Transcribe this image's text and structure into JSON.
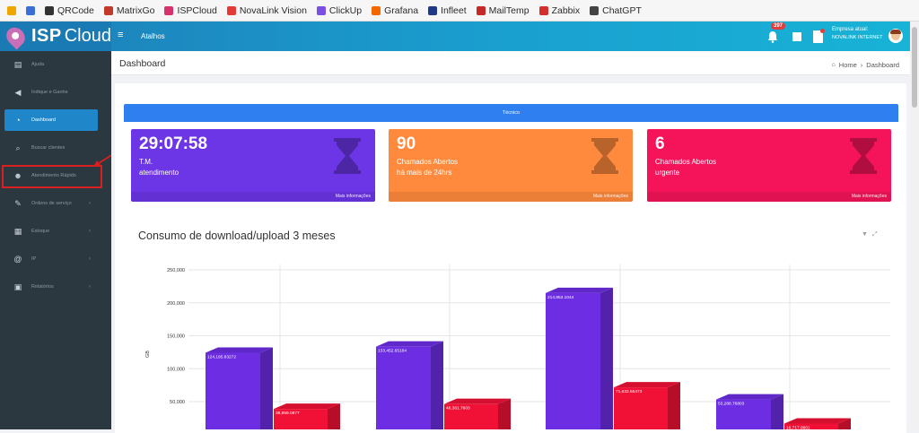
{
  "bookmarks": [
    {
      "label": "",
      "color": "#f0a500"
    },
    {
      "label": "",
      "color": "#3b6fd6"
    },
    {
      "label": "QRCode",
      "color": "#333333"
    },
    {
      "label": "MatrixGo",
      "color": "#c0392b"
    },
    {
      "label": "ISPCloud",
      "color": "#d6336c"
    },
    {
      "label": "NovaLink Vision",
      "color": "#e53935"
    },
    {
      "label": "ClickUp",
      "color": "#7b4fe0"
    },
    {
      "label": "Grafana",
      "color": "#f46800"
    },
    {
      "label": "Infleet",
      "color": "#1e3a8a"
    },
    {
      "label": "MailTemp",
      "color": "#c62828"
    },
    {
      "label": "Zabbix",
      "color": "#d32f2f"
    },
    {
      "label": "ChatGPT",
      "color": "#444444"
    }
  ],
  "brand": {
    "bold": "ISP",
    "light": "Cloud"
  },
  "topbar": {
    "menu_icon": "≡",
    "shortcuts": "Atalhos",
    "notifications_count": "397",
    "company_label": "Empresa atual:",
    "company_value": "NOVALINK INTERNET"
  },
  "sidebar": {
    "items": [
      {
        "label": "Ajuda",
        "icon": "book-icon",
        "glyph": "▤",
        "chevron": ""
      },
      {
        "label": "Indique e Ganhe",
        "icon": "megaphone-icon",
        "glyph": "◀",
        "chevron": ""
      },
      {
        "label": "Dashboard",
        "icon": "dashboard-icon",
        "glyph": "◔",
        "chevron": ""
      },
      {
        "label": "Buscar clientes",
        "icon": "search-icon",
        "glyph": "⌕",
        "chevron": ""
      },
      {
        "label": "Atendimento Rápido",
        "icon": "users-icon",
        "glyph": "☻",
        "chevron": ""
      },
      {
        "label": "Ordens de serviço",
        "icon": "wrench-icon",
        "glyph": "✎",
        "chevron": "›"
      },
      {
        "label": "Estoque",
        "icon": "box-icon",
        "glyph": "▦",
        "chevron": "›"
      },
      {
        "label": "IP",
        "icon": "at-icon",
        "glyph": "@",
        "chevron": "›"
      },
      {
        "label": "Relatórios",
        "icon": "report-icon",
        "glyph": "▣",
        "chevron": "›"
      }
    ]
  },
  "header": {
    "title": "Dashboard",
    "crumb_home": "Home",
    "crumb_sep": "›",
    "crumb_current": "Dashboard"
  },
  "tecnico_label": "Técnico",
  "cards": [
    {
      "value": "29:07:58",
      "line1": "T.M.",
      "line2": "atendimento",
      "more": "Mais informações",
      "color": "#6c35e6"
    },
    {
      "value": "90",
      "line1": "Chamados Abertos",
      "line2": "há mais de 24hrs",
      "more": "Mais informações",
      "color": "#ff8a3d"
    },
    {
      "value": "6",
      "line1": "Chamados Abertos",
      "line2": "urgente",
      "more": "Mais informações",
      "color": "#f5145a"
    }
  ],
  "chart_title": "Consumo de download/upload 3 meses",
  "chart_data": {
    "type": "bar",
    "ylabel": "GB",
    "ylim": [
      0,
      250000
    ],
    "yticks": [
      "50,000",
      "100,000",
      "150,000",
      "200,000",
      "250,000"
    ],
    "colors": {
      "download": "#6d2ee3",
      "upload": "#f21136"
    },
    "groups": [
      {
        "download": 124195.83272,
        "download_label": "124,195.83272",
        "upload": 38959.0877,
        "upload_label": "38,959.0877"
      },
      {
        "download": 133452.65184,
        "download_label": "133,452.65184",
        "upload": 46361.7603,
        "upload_label": "46,361.7603"
      },
      {
        "download": 214853.1044,
        "download_label": "214,853.1044",
        "upload": 71632.65473,
        "upload_label": "71,632.65473"
      },
      {
        "download": 53288.76803,
        "download_label": "53,288.76803",
        "upload": 16717.9801,
        "upload_label": "16,717.9801"
      }
    ]
  }
}
